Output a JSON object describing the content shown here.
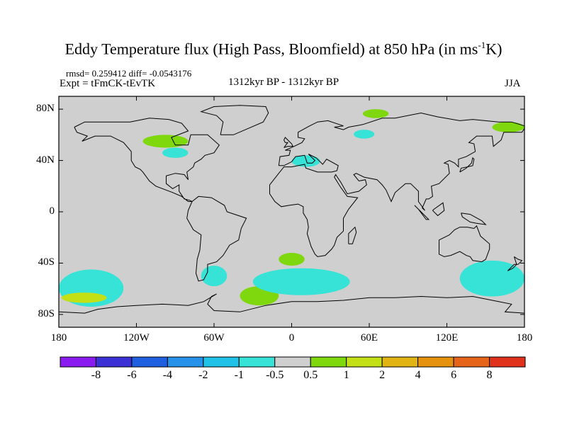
{
  "chart_data": {
    "type": "heatmap",
    "title": "Eddy Temperature flux (High Pass, Bloomfield) at 850 hPa (in ms",
    "title_exponent": "-1",
    "title_suffix": "K)",
    "stats_line": "rmsd= 0.259412 diff= -0.0543176",
    "expt_line": "Expt = tFmCK-tEvTK",
    "period_line": "1312kyr BP - 1312kyr BP",
    "season": "JJA",
    "map_projection": "cylindrical-equidistant",
    "lon_range": [
      -180,
      180
    ],
    "lat_range": [
      -90,
      90
    ],
    "background_value_range": [
      -0.5,
      0.5
    ],
    "x_ticks": [
      {
        "lon": -180,
        "label": "180"
      },
      {
        "lon": -120,
        "label": "120W"
      },
      {
        "lon": -60,
        "label": "60W"
      },
      {
        "lon": 0,
        "label": "0"
      },
      {
        "lon": 60,
        "label": "60E"
      },
      {
        "lon": 120,
        "label": "120E"
      },
      {
        "lon": 180,
        "label": "180"
      }
    ],
    "y_ticks": [
      {
        "lat": 80,
        "label": "80N"
      },
      {
        "lat": 40,
        "label": "40N"
      },
      {
        "lat": 0,
        "label": "0"
      },
      {
        "lat": -40,
        "label": "40S"
      },
      {
        "lat": -80,
        "label": "80S"
      }
    ],
    "colorbar": {
      "colors": [
        "#8a1bf0",
        "#3b2fd6",
        "#1f5fe0",
        "#2591e8",
        "#1fc1e6",
        "#36e3d6",
        "#cfcfcf",
        "#7fd80e",
        "#c3e017",
        "#e2b413",
        "#e5920f",
        "#e5641a",
        "#e0311d"
      ],
      "tick_labels": [
        "-8",
        "-6",
        "-4",
        "-2",
        "-1",
        "-0.5",
        "0.5",
        "1",
        "2",
        "4",
        "6",
        "8"
      ]
    },
    "anomaly_regions": [
      {
        "name": "s-pacific-negative",
        "level": "-1",
        "lon_range": [
          -180,
          -130
        ],
        "lat_range": [
          -74,
          -45
        ]
      },
      {
        "name": "s-pacific-positive-core",
        "level": "2",
        "lon_range": [
          -178,
          -143
        ],
        "lat_range": [
          -71,
          -63
        ]
      },
      {
        "name": "drake-passage-negative",
        "level": "-1",
        "lon_range": [
          -70,
          -50
        ],
        "lat_range": [
          -58,
          -42
        ]
      },
      {
        "name": "s-atlantic-positive",
        "level": "1",
        "lon_range": [
          -40,
          -10
        ],
        "lat_range": [
          -73,
          -58
        ]
      },
      {
        "name": "s-atlantic-negative",
        "level": "-1",
        "lon_range": [
          -30,
          45
        ],
        "lat_range": [
          -65,
          -44
        ]
      },
      {
        "name": "s-atlantic-positive-small",
        "level": "1",
        "lon_range": [
          -10,
          10
        ],
        "lat_range": [
          -42,
          -32
        ]
      },
      {
        "name": "s-indian-negative",
        "level": "-1",
        "lon_range": [
          130,
          180
        ],
        "lat_range": [
          -66,
          -38
        ]
      },
      {
        "name": "n-atlantic-positive",
        "level": "1",
        "lon_range": [
          -115,
          -80
        ],
        "lat_range": [
          50,
          60
        ]
      },
      {
        "name": "n-siberia-negative",
        "level": "-1",
        "lon_range": [
          48,
          64
        ],
        "lat_range": [
          57,
          64
        ]
      },
      {
        "name": "arctic-positive",
        "level": "1",
        "lon_range": [
          55,
          75
        ],
        "lat_range": [
          73,
          80
        ]
      },
      {
        "name": "ne-asia-positive",
        "level": "1",
        "lon_range": [
          155,
          180
        ],
        "lat_range": [
          62,
          70
        ]
      },
      {
        "name": "mediterranean-negative",
        "level": "-1",
        "lon_range": [
          0,
          22
        ],
        "lat_range": [
          35,
          44
        ]
      },
      {
        "name": "n-america-negative",
        "level": "-1",
        "lon_range": [
          -100,
          -80
        ],
        "lat_range": [
          42,
          50
        ]
      }
    ]
  }
}
